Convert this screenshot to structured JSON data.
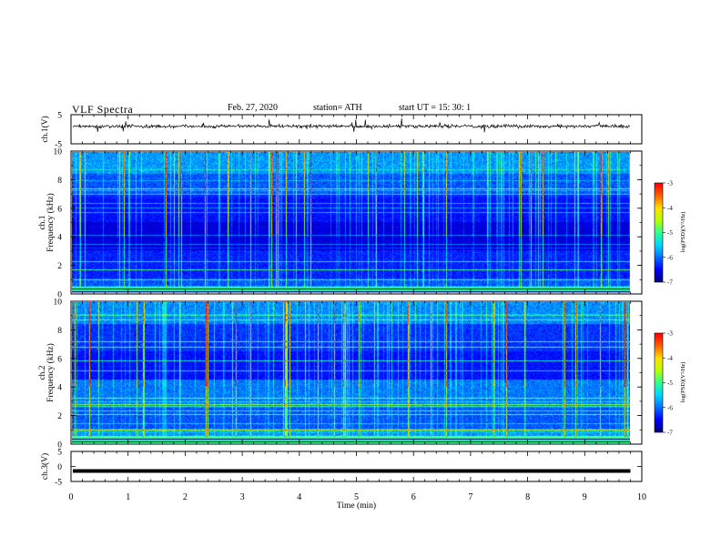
{
  "header": {
    "title": "VLF  Spectra",
    "date": "Feb. 27, 2020",
    "station": "station= ATH",
    "start": "start  UT  =    15: 30: 1"
  },
  "chart_data": [
    {
      "type": "line",
      "ylabel": "ch.1(V)",
      "ylim": [
        -5,
        5
      ],
      "yticks": [
        "5",
        "-5"
      ],
      "description_values": "noisy waveform near +1 V",
      "level": 1
    },
    {
      "type": "heatmap",
      "channel_label": "ch.1",
      "ylabel": "Frequency  (kHz)",
      "ylim": [
        0,
        10
      ],
      "yticks": [
        "0",
        "2",
        "4",
        "6",
        "8",
        "10"
      ],
      "colorbar": {
        "label": "log(PSD)(V²/Hz)",
        "ticks": [
          "-3",
          "-4",
          "-5",
          "-6",
          "-7"
        ],
        "range": [
          -7,
          -3
        ]
      }
    },
    {
      "type": "heatmap",
      "channel_label": "ch.2",
      "ylabel": "Frequency  (kHz)",
      "ylim": [
        0,
        10
      ],
      "yticks": [
        "0",
        "2",
        "4",
        "6",
        "8",
        "10"
      ],
      "colorbar": {
        "label": "log(PSD)(V²/Hz)",
        "ticks": [
          "-3",
          "-4",
          "-5",
          "-6",
          "-7"
        ],
        "range": [
          -7,
          -3
        ]
      }
    },
    {
      "type": "line",
      "ylabel": "ch.3(V)",
      "ylim": [
        -5,
        5
      ],
      "yticks": [
        "5",
        "0",
        "-5"
      ],
      "level": -1.5
    }
  ],
  "xaxis": {
    "label": "Time  (min)",
    "ticks": [
      "0",
      "1",
      "2",
      "3",
      "4",
      "5",
      "6",
      "7",
      "8",
      "9",
      "10"
    ],
    "xlim": [
      0,
      10
    ],
    "data_end": 9.8
  },
  "colors": {
    "colormap": [
      "#00007a",
      "#0000ff",
      "#0070ff",
      "#00d8ff",
      "#30ff90",
      "#b8ff00",
      "#ffe000",
      "#ff6000",
      "#ff0000",
      "#ffffff"
    ]
  }
}
